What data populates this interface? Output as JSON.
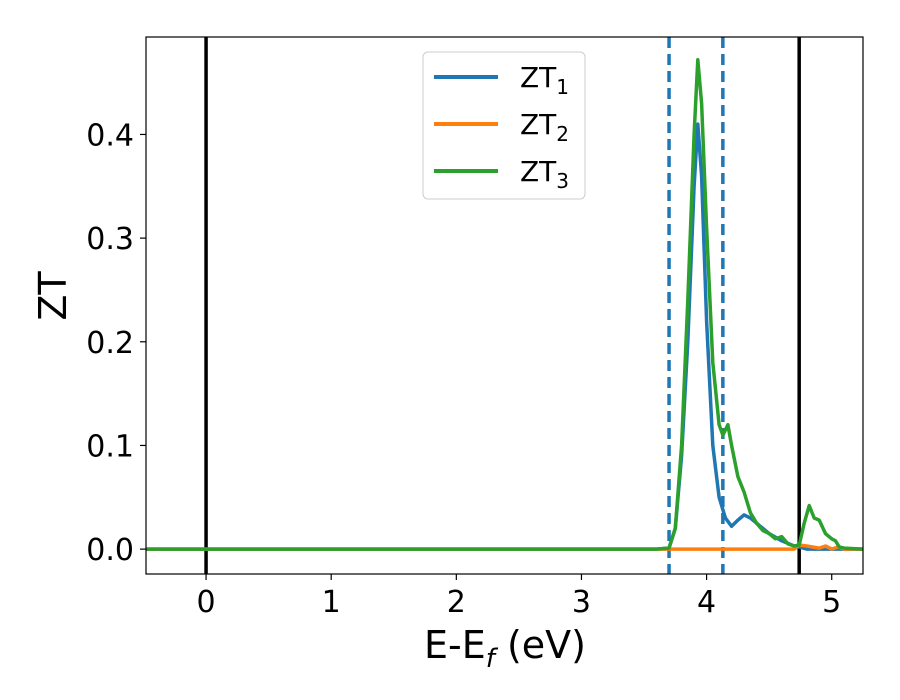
{
  "chart_data": {
    "type": "line",
    "xlabel": "E-E",
    "xlabel_sub": "f",
    "xlabel_suffix": " (eV)",
    "ylabel": "ZT",
    "xlim": [
      -0.48,
      5.25
    ],
    "ylim": [
      -0.024,
      0.494
    ],
    "xticks": [
      0,
      1,
      2,
      3,
      4,
      5
    ],
    "yticks": [
      0.0,
      0.1,
      0.2,
      0.3,
      0.4
    ],
    "xtick_labels": [
      "0",
      "1",
      "2",
      "3",
      "4",
      "5"
    ],
    "ytick_labels": [
      "0.0",
      "0.1",
      "0.2",
      "0.3",
      "0.4"
    ],
    "grid": false,
    "legend_position": "top-center",
    "vlines_solid": [
      0.0,
      4.74
    ],
    "vlines_dashed": [
      3.7,
      4.13
    ],
    "series": [
      {
        "name": "ZT",
        "sub": "1",
        "color": "#1f77b4",
        "x": [
          -0.48,
          3.6,
          3.7,
          3.75,
          3.8,
          3.85,
          3.9,
          3.93,
          3.96,
          4.0,
          4.05,
          4.1,
          4.15,
          4.2,
          4.25,
          4.3,
          4.35,
          4.4,
          4.5,
          4.6,
          4.7,
          4.74,
          4.8,
          5.0,
          5.25
        ],
        "y": [
          0.0,
          0.0,
          0.001,
          0.02,
          0.09,
          0.2,
          0.35,
          0.41,
          0.36,
          0.22,
          0.1,
          0.05,
          0.03,
          0.022,
          0.028,
          0.033,
          0.03,
          0.025,
          0.015,
          0.008,
          0.003,
          0.002,
          0.0,
          0.0,
          0.0
        ]
      },
      {
        "name": "ZT",
        "sub": "2",
        "color": "#ff7f0e",
        "x": [
          -0.48,
          4.7,
          4.74,
          4.8,
          4.9,
          4.95,
          5.0,
          5.05,
          5.1,
          5.25
        ],
        "y": [
          0.0,
          0.0,
          0.004,
          0.003,
          0.001,
          0.003,
          0.0,
          0.002,
          0.0,
          0.0
        ]
      },
      {
        "name": "ZT",
        "sub": "3",
        "color": "#2ca02c",
        "x": [
          -0.48,
          3.6,
          3.7,
          3.75,
          3.8,
          3.85,
          3.9,
          3.93,
          3.96,
          4.0,
          4.05,
          4.1,
          4.13,
          4.17,
          4.2,
          4.25,
          4.3,
          4.35,
          4.4,
          4.45,
          4.5,
          4.55,
          4.6,
          4.65,
          4.7,
          4.74,
          4.78,
          4.82,
          4.86,
          4.9,
          4.95,
          5.0,
          5.03,
          5.06,
          5.1,
          5.25
        ],
        "y": [
          0.0,
          0.0,
          0.001,
          0.02,
          0.1,
          0.24,
          0.4,
          0.472,
          0.43,
          0.31,
          0.18,
          0.12,
          0.11,
          0.12,
          0.1,
          0.07,
          0.055,
          0.035,
          0.025,
          0.018,
          0.015,
          0.01,
          0.012,
          0.005,
          0.003,
          0.004,
          0.025,
          0.042,
          0.03,
          0.028,
          0.015,
          0.01,
          0.008,
          0.002,
          0.001,
          0.0
        ]
      }
    ]
  }
}
